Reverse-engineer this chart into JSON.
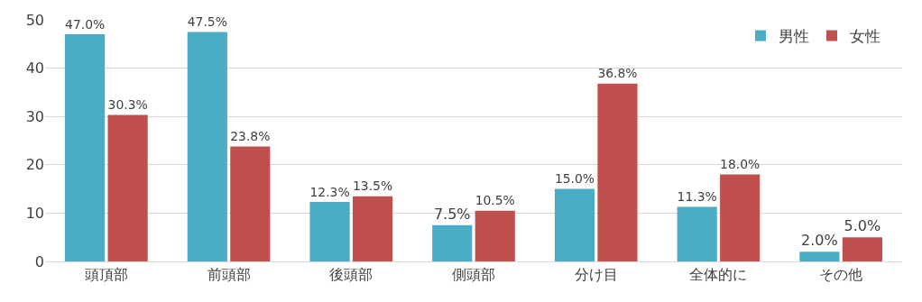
{
  "chart_data": {
    "type": "bar",
    "categories": [
      "頭頂部",
      "前頭部",
      "後頭部",
      "側頭部",
      "分け目",
      "全体的に",
      "その他"
    ],
    "series": [
      {
        "name": "男性",
        "color": "#4bacc6",
        "values": [
          47.0,
          47.5,
          12.3,
          7.5,
          15.0,
          11.3,
          2.0
        ],
        "value_labels": [
          "47.0%",
          "47.5%",
          "12.3%",
          "7.5%",
          "15.0%",
          "11.3%",
          "2.0%"
        ]
      },
      {
        "name": "女性",
        "color": "#c0504d",
        "values": [
          30.3,
          23.8,
          13.5,
          10.5,
          36.8,
          18.0,
          5.0
        ],
        "value_labels": [
          "30.3%",
          "23.8%",
          "13.5%",
          "10.5%",
          "36.8%",
          "18.0%",
          "5.0%"
        ]
      }
    ],
    "ylim": [
      0,
      50
    ],
    "yticks": [
      0,
      10,
      20,
      30,
      40,
      50
    ],
    "grid": "y",
    "legend": "top right"
  }
}
